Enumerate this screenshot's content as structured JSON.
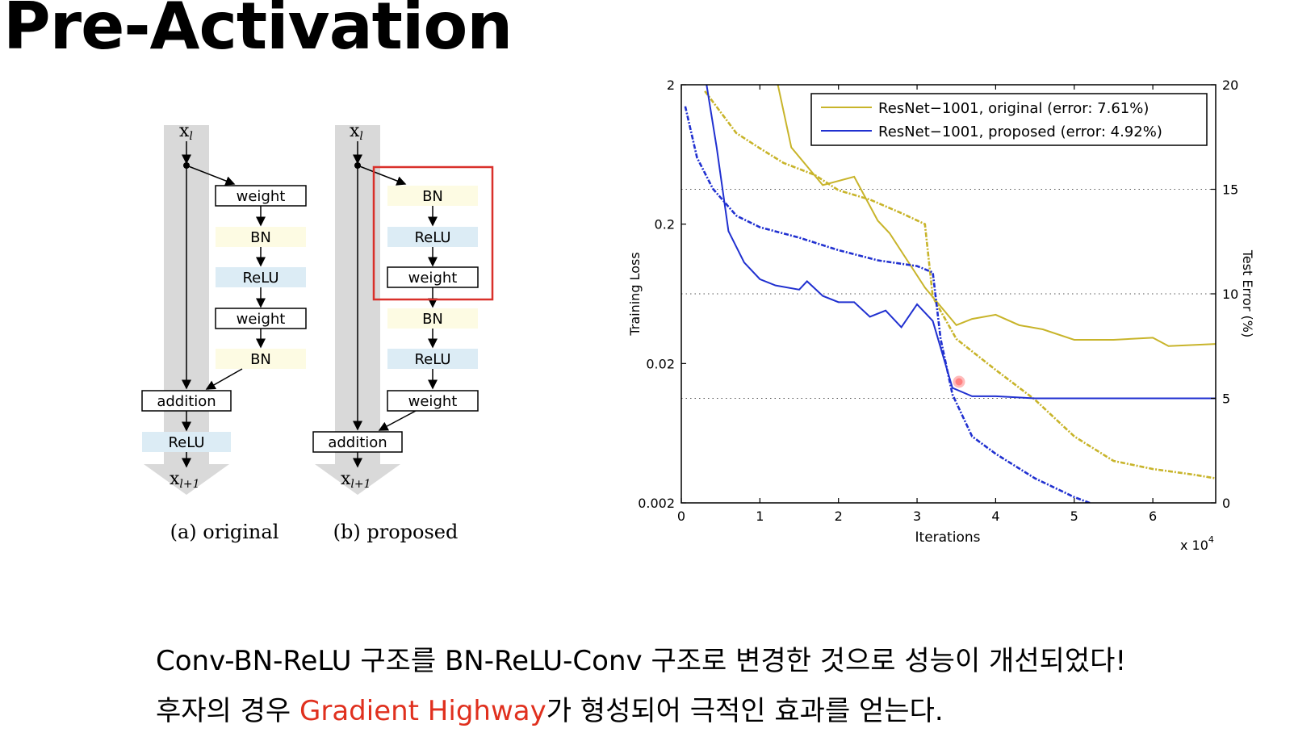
{
  "title": "Pre-Activation",
  "diagram": {
    "input_label": "x",
    "input_sub": "l",
    "output_label": "x",
    "output_sub": "l+1",
    "original": {
      "caption": "(a) original",
      "blocks": [
        "weight",
        "BN",
        "ReLU",
        "weight",
        "BN"
      ],
      "addition": "addition",
      "after": "ReLU"
    },
    "proposed": {
      "caption": "(b) proposed",
      "blocks": [
        "BN",
        "ReLU",
        "weight",
        "BN",
        "ReLU",
        "weight"
      ],
      "addition": "addition"
    },
    "colors": {
      "weight": "#ffffff",
      "BN": "#fdfbe3",
      "ReLU": "#dcecf5",
      "highlight": "#d9302a",
      "shortcut": "#d9d9d9"
    }
  },
  "chart_data": {
    "type": "line",
    "xlabel": "Iterations",
    "x_multiplier": "x 10",
    "x_multiplier_exp": "4",
    "ylabel_left": "Training Loss",
    "ylabel_right": "Test Error (%)",
    "x_ticks": [
      "0",
      "1",
      "2",
      "3",
      "4",
      "5",
      "6"
    ],
    "xlim": [
      0,
      6.8
    ],
    "left_scale": "log",
    "left_ticks": [
      "2",
      "0.2",
      "0.02",
      "0.002"
    ],
    "left_tick_values": [
      2,
      0.2,
      0.02,
      0.002
    ],
    "ylim_left": [
      0.002,
      2
    ],
    "right_ticks": [
      "20",
      "15",
      "10",
      "5",
      "0"
    ],
    "right_tick_values": [
      20,
      15,
      10,
      5,
      0
    ],
    "ylim_right": [
      0,
      20
    ],
    "grid": "dotted horizontal at right ticks 15, 10, 5",
    "legend_position": "top-right",
    "series": [
      {
        "name": "ResNet−1001, original (error: 7.61%)",
        "color": "#c8b42a",
        "test_error": [
          [
            1.2,
            20.5
          ],
          [
            1.4,
            17
          ],
          [
            1.8,
            15.2
          ],
          [
            2.2,
            15.6
          ],
          [
            2.5,
            13.5
          ],
          [
            2.65,
            12.9
          ],
          [
            3.1,
            10.3
          ],
          [
            3.5,
            8.5
          ],
          [
            3.7,
            8.8
          ],
          [
            4.0,
            9.0
          ],
          [
            4.3,
            8.5
          ],
          [
            4.6,
            8.3
          ],
          [
            5.0,
            7.8
          ],
          [
            5.5,
            7.8
          ],
          [
            6.0,
            7.9
          ],
          [
            6.2,
            7.5
          ],
          [
            6.8,
            7.6
          ]
        ],
        "train_loss": [
          [
            0.3,
            1.8
          ],
          [
            0.7,
            0.9
          ],
          [
            1.0,
            0.7
          ],
          [
            1.3,
            0.55
          ],
          [
            1.7,
            0.45
          ],
          [
            2.0,
            0.35
          ],
          [
            2.4,
            0.3
          ],
          [
            2.8,
            0.24
          ],
          [
            3.1,
            0.2
          ],
          [
            3.2,
            0.06
          ],
          [
            3.5,
            0.03
          ],
          [
            4.0,
            0.018
          ],
          [
            4.5,
            0.011
          ],
          [
            5.0,
            0.006
          ],
          [
            5.5,
            0.004
          ],
          [
            6.0,
            0.0035
          ],
          [
            6.5,
            0.0032
          ],
          [
            6.8,
            0.003
          ]
        ]
      },
      {
        "name": "ResNet−1001, proposed (error: 4.92%)",
        "color": "#2030d0",
        "test_error": [
          [
            0.3,
            20.5
          ],
          [
            0.45,
            17
          ],
          [
            0.6,
            13
          ],
          [
            0.8,
            11.5
          ],
          [
            1.0,
            10.7
          ],
          [
            1.2,
            10.4
          ],
          [
            1.5,
            10.2
          ],
          [
            1.6,
            10.6
          ],
          [
            1.8,
            9.9
          ],
          [
            2.0,
            9.6
          ],
          [
            2.2,
            9.6
          ],
          [
            2.4,
            8.9
          ],
          [
            2.6,
            9.2
          ],
          [
            2.8,
            8.4
          ],
          [
            3.0,
            9.5
          ],
          [
            3.2,
            8.7
          ],
          [
            3.45,
            5.5
          ],
          [
            3.7,
            5.1
          ],
          [
            4.0,
            5.1
          ],
          [
            4.5,
            5.0
          ],
          [
            5.0,
            5.0
          ],
          [
            5.5,
            5.0
          ],
          [
            6.0,
            5.0
          ],
          [
            6.8,
            5.0
          ]
        ],
        "train_loss": [
          [
            0.05,
            1.4
          ],
          [
            0.2,
            0.6
          ],
          [
            0.4,
            0.36
          ],
          [
            0.7,
            0.23
          ],
          [
            1.0,
            0.19
          ],
          [
            1.5,
            0.16
          ],
          [
            2.0,
            0.13
          ],
          [
            2.5,
            0.11
          ],
          [
            3.0,
            0.1
          ],
          [
            3.2,
            0.09
          ],
          [
            3.3,
            0.03
          ],
          [
            3.45,
            0.012
          ],
          [
            3.7,
            0.006
          ],
          [
            4.0,
            0.0045
          ],
          [
            4.5,
            0.003
          ],
          [
            5.0,
            0.0022
          ],
          [
            5.3,
            0.0019
          ]
        ]
      }
    ]
  },
  "caption": {
    "line1": "Conv-BN-ReLU 구조를 BN-ReLU-Conv 구조로 변경한 것으로 성능이 개선되었다!",
    "line2_pre": "후자의 경우 ",
    "line2_hl": "Gradient Highway",
    "line2_post": "가 형성되어 극적인 효과를 얻는다."
  }
}
